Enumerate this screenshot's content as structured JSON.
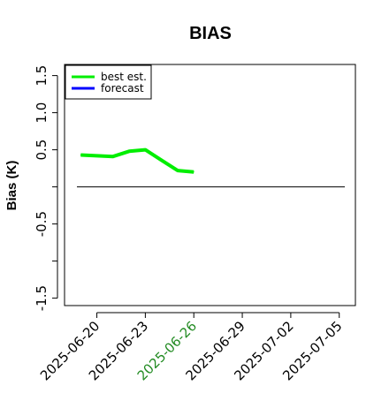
{
  "chart_data": {
    "type": "line",
    "title": "BIAS",
    "ylabel": "Bias (K)",
    "xlabel": "",
    "ylim": [
      -1.6,
      1.65
    ],
    "yticks": [
      -1.5,
      -1.0,
      -0.5,
      0.0,
      0.5,
      1.0,
      1.5
    ],
    "ytick_labels": [
      "-1.5",
      "",
      "-0.5",
      "",
      "0.5",
      "1.0",
      "1.5"
    ],
    "x_range": [
      "2025-06-18",
      "2025-07-06"
    ],
    "xticks": [
      "2025-06-20",
      "2025-06-23",
      "2025-06-26",
      "2025-06-29",
      "2025-07-02",
      "2025-07-05"
    ],
    "highlighted_xtick": "2025-06-26",
    "highlight_color": "#228B22",
    "grid": false,
    "legend_position": "top-left",
    "reference_line": {
      "y": 0.0,
      "color": "#000000"
    },
    "series": [
      {
        "name": "best est.",
        "color": "#00ee00",
        "x": [
          "2025-06-19",
          "2025-06-21",
          "2025-06-22",
          "2025-06-23",
          "2025-06-24",
          "2025-06-25",
          "2025-06-26"
        ],
        "values": [
          0.43,
          0.41,
          0.48,
          0.5,
          0.36,
          0.22,
          0.2
        ]
      },
      {
        "name": "forecast",
        "color": "#0000ff",
        "x": [],
        "values": []
      }
    ]
  }
}
